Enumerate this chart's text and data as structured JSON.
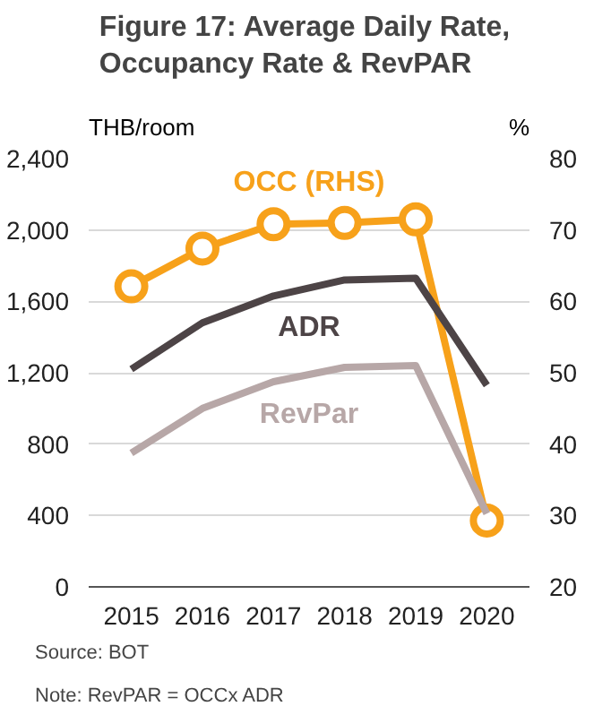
{
  "chart_data": {
    "type": "line",
    "title": "Figure 17:  Average Daily Rate,\nOccupancy Rate & RevPAR",
    "ylabel": "THB/room",
    "y2label": "%",
    "categories": [
      "2015",
      "2016",
      "2017",
      "2018",
      "2019",
      "2020"
    ],
    "series": [
      {
        "name": "OCC (RHS)",
        "color": "#f7a11a",
        "axis": "y2",
        "marker": "circle",
        "values": [
          62.1,
          67.4,
          70.8,
          71.0,
          71.5,
          29.3
        ]
      },
      {
        "name": "ADR",
        "color": "#4d4446",
        "values": [
          1220,
          1480,
          1630,
          1720,
          1730,
          1130
        ]
      },
      {
        "name": "RevPar",
        "color": "#b7a7a7",
        "values": [
          750,
          1000,
          1150,
          1230,
          1240,
          410
        ]
      }
    ],
    "ylim": [
      0,
      2400
    ],
    "yticks": [
      {
        "value": 0,
        "label": "0"
      },
      {
        "value": 400,
        "label": "400"
      },
      {
        "value": 800,
        "label": "800"
      },
      {
        "value": 1200,
        "label": "1,200"
      },
      {
        "value": 1600,
        "label": "1,600"
      },
      {
        "value": 2000,
        "label": "2,000"
      },
      {
        "value": 2400,
        "label": "2,400"
      }
    ],
    "y2lim": [
      20,
      80
    ],
    "y2ticks": [
      20,
      30,
      40,
      50,
      60,
      70,
      80
    ],
    "grid": "y",
    "legend": false,
    "annotations": [
      "Source: BOT",
      "Note: RevPAR = OCCx ADR"
    ]
  }
}
